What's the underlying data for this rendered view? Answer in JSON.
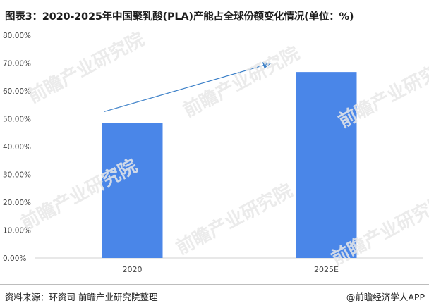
{
  "title": "图表3：2020-2025年中国聚乳酸(PLA)产能占全球份额变化情况(单位：%)",
  "footer": {
    "source": "资料来源：环资司 前瞻产业研究院整理",
    "credit": "@前瞻经济学人APP"
  },
  "watermark": {
    "text": "前瞻产业研究院"
  },
  "colors": {
    "bar": "#4a86e8",
    "arrow": "#3c80c8",
    "axis": "#d0d0d0"
  },
  "chart_data": {
    "type": "bar",
    "categories": [
      "2020",
      "2025E"
    ],
    "values": [
      48.5,
      66.8
    ],
    "yticks": [
      "0.00%",
      "10.00%",
      "20.00%",
      "30.00%",
      "40.00%",
      "50.00%",
      "60.00%",
      "70.00%",
      "80.00%"
    ],
    "ylim": [
      0,
      80
    ],
    "grid": false,
    "annotation": "trend-arrow"
  }
}
